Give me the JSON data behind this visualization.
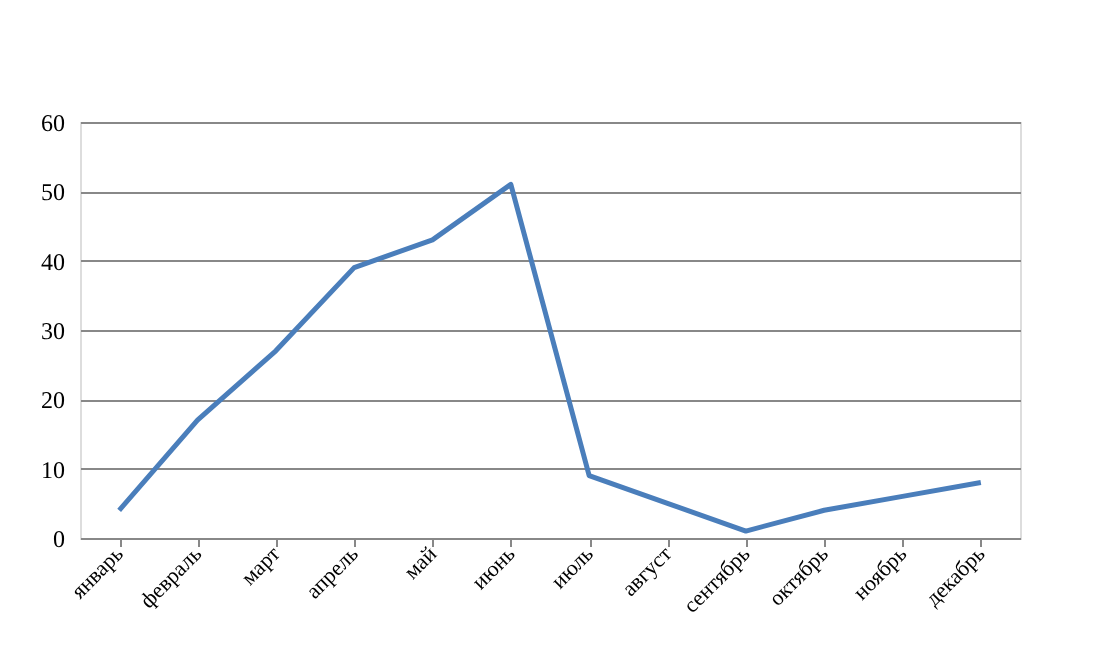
{
  "chart_data": {
    "type": "line",
    "categories": [
      "январь",
      "февраль",
      "март",
      "апрель",
      "май",
      "июнь",
      "июль",
      "август",
      "сентябрь",
      "октябрь",
      "ноябрь",
      "декабрь"
    ],
    "series": [
      {
        "color": "#4a7ebb",
        "values": [
          4,
          17,
          27,
          39,
          43,
          51,
          9,
          5,
          1,
          4,
          6,
          8
        ]
      }
    ],
    "ylim": [
      0,
      60
    ],
    "yticks": [
      0,
      10,
      20,
      30,
      40,
      50,
      60
    ],
    "grid": "y",
    "marker": "none",
    "line_style": "solid"
  }
}
